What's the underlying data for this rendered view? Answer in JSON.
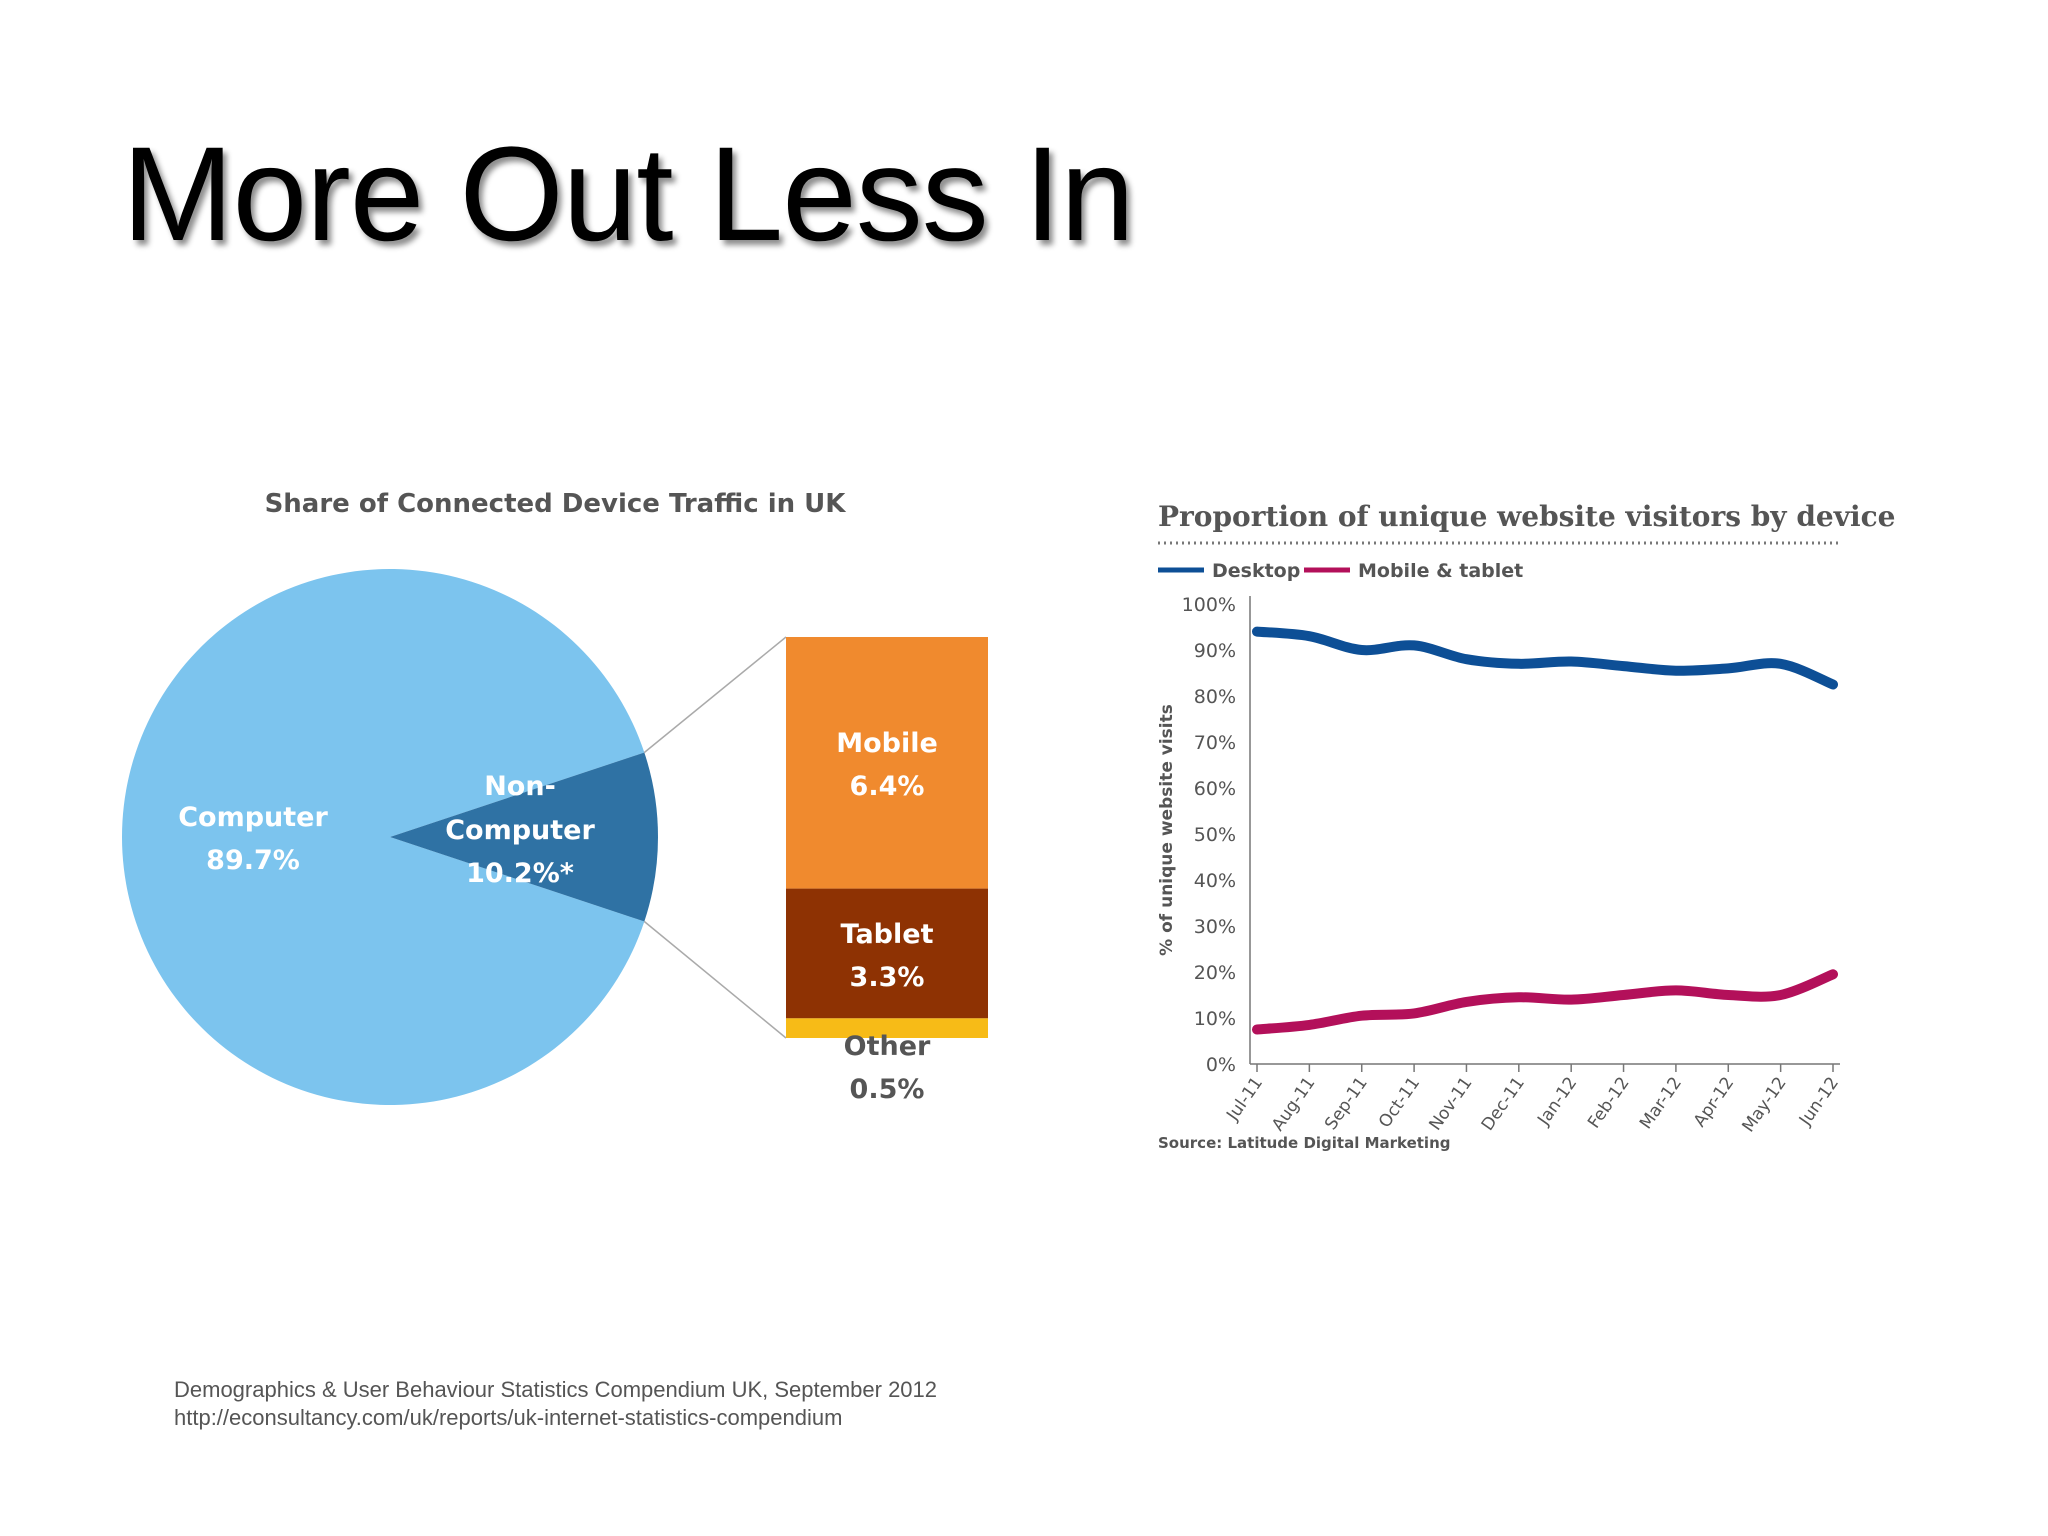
{
  "slide": {
    "title": "More Out Less In",
    "footer": {
      "line1": "Demographics & User Behaviour Statistics Compendium UK, September 2012",
      "line2": "http://econsultancy.com/uk/reports/uk-internet-statistics-compendium"
    }
  },
  "colors": {
    "computer": "#7cc4ee",
    "non_computer": "#2f72a4",
    "mobile": "#f08a2e",
    "tablet": "#8e3203",
    "other": "#f7bb17",
    "desktop_line": "#0d4f96",
    "mobile_tablet_line": "#b3105a"
  },
  "chart_data": [
    {
      "type": "pie",
      "title": "Share of Connected Device Traffic in UK",
      "slices": [
        {
          "label_line1": "Computer",
          "label_line2": "89.7%",
          "value": 89.7
        },
        {
          "label_line1": "Non-",
          "label_line2": "Computer",
          "label_line3": "10.2%*",
          "value": 10.2
        }
      ],
      "breakdown": [
        {
          "label_line1": "Mobile",
          "label_line2": "6.4%",
          "value": 6.4
        },
        {
          "label_line1": "Tablet",
          "label_line2": "3.3%",
          "value": 3.3
        },
        {
          "label_line1": "Other",
          "label_line2": "0.5%",
          "value": 0.5
        }
      ]
    },
    {
      "type": "line",
      "title": "Proportion of unique website visitors by device",
      "ylabel": "% of unique website visits",
      "ylim": [
        0,
        100
      ],
      "yticks": [
        "0%",
        "10%",
        "20%",
        "30%",
        "40%",
        "50%",
        "60%",
        "70%",
        "80%",
        "90%",
        "100%"
      ],
      "categories": [
        "Jul-11",
        "Aug-11",
        "Sep-11",
        "Oct-11",
        "Nov-11",
        "Dec-11",
        "Jan-12",
        "Feb-12",
        "Mar-12",
        "Apr-12",
        "May-12",
        "Jun-12"
      ],
      "legend_position": "top-left",
      "series": [
        {
          "name": "Desktop",
          "values": [
            94,
            93,
            90,
            91,
            88,
            87,
            87.5,
            86.5,
            85.5,
            86,
            87,
            82.5
          ]
        },
        {
          "name": "Mobile & tablet",
          "values": [
            7.5,
            8.5,
            10.5,
            11,
            13.5,
            14.5,
            14,
            15,
            16,
            15,
            15,
            19.5
          ]
        }
      ],
      "source": "Source: Latitude Digital Marketing"
    }
  ]
}
